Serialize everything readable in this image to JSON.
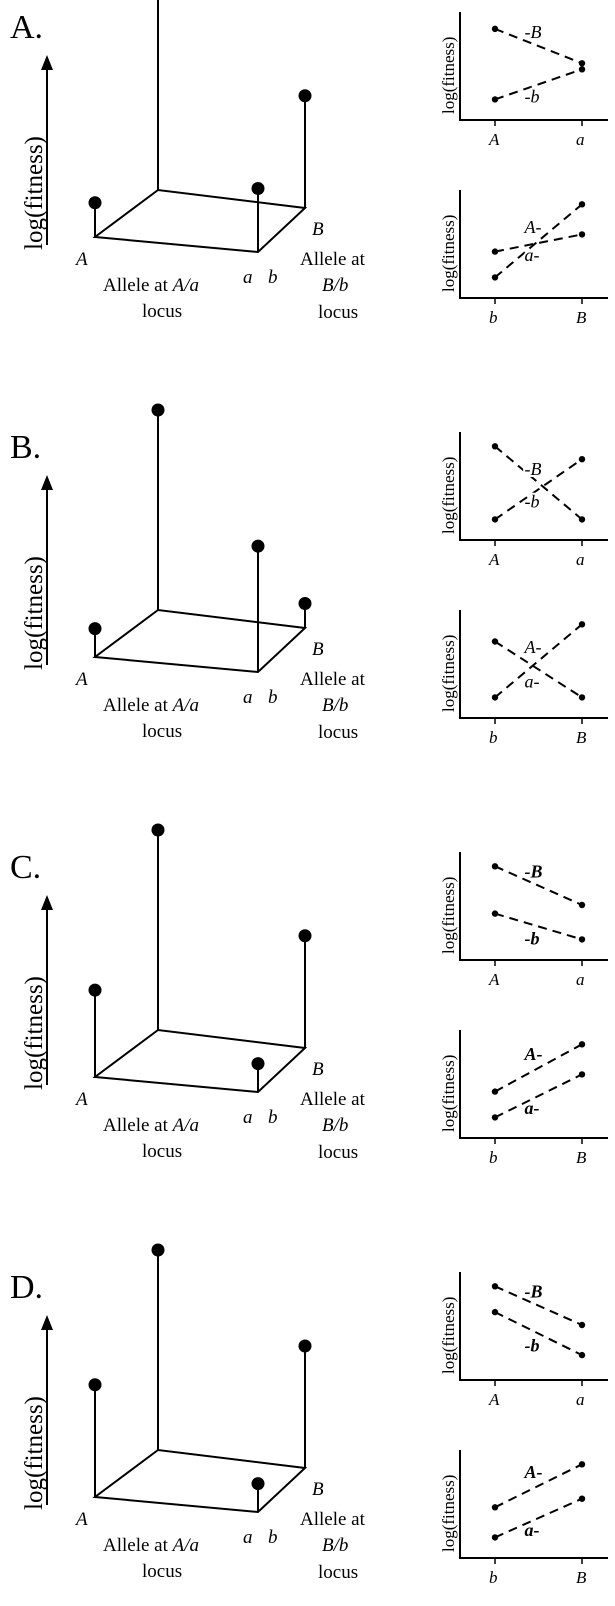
{
  "figure": {
    "panels": [
      {
        "letter": "A.",
        "ylabel": "log(fitness)",
        "x_axis_label": [
          "Allele at ",
          "A/a",
          "locus"
        ],
        "y_axis_label": [
          "Allele at",
          "B/b",
          "locus"
        ],
        "corners": {
          "A": "A",
          "a": "a",
          "b": "b",
          "B": "B"
        },
        "fitness_3d": {
          "Ab": 0.15,
          "AB": 1.0,
          "ab": 0.3,
          "aB": 0.55
        },
        "top_plot": {
          "ylabel": "log(fitness)",
          "xticks": [
            "A",
            "a"
          ],
          "series": [
            {
              "label": "-B",
              "bold": false,
              "values": [
                0.92,
                0.52
              ]
            },
            {
              "label": "-b",
              "bold": false,
              "values": [
                0.1,
                0.45
              ]
            }
          ]
        },
        "bottom_plot": {
          "ylabel": "log(fitness)",
          "xticks": [
            "b",
            "B"
          ],
          "series": [
            {
              "label": "A-",
              "bold": false,
              "values": [
                0.1,
                0.95
              ]
            },
            {
              "label": "a-",
              "bold": false,
              "values": [
                0.4,
                0.6
              ]
            }
          ]
        }
      },
      {
        "letter": "B.",
        "ylabel": "log(fitness)",
        "x_axis_label": [
          "Allele at ",
          "A/a",
          "locus"
        ],
        "y_axis_label": [
          "Allele at",
          "B/b",
          "locus"
        ],
        "corners": {
          "A": "A",
          "a": "a",
          "b": "b",
          "B": "B"
        },
        "fitness_3d": {
          "Ab": 0.12,
          "AB": 1.0,
          "ab": 0.62,
          "aB": 0.1
        },
        "top_plot": {
          "ylabel": "log(fitness)",
          "xticks": [
            "A",
            "a"
          ],
          "series": [
            {
              "label": "-B",
              "bold": false,
              "values": [
                0.95,
                0.1
              ]
            },
            {
              "label": "-b",
              "bold": false,
              "values": [
                0.1,
                0.8
              ]
            }
          ]
        },
        "bottom_plot": {
          "ylabel": "log(fitness)",
          "xticks": [
            "b",
            "B"
          ],
          "series": [
            {
              "label": "A-",
              "bold": false,
              "values": [
                0.1,
                0.95
              ]
            },
            {
              "label": "a-",
              "bold": false,
              "values": [
                0.75,
                0.1
              ]
            }
          ]
        }
      },
      {
        "letter": "C.",
        "ylabel": "log(fitness)",
        "x_axis_label": [
          "Allele at ",
          "A/a",
          "locus"
        ],
        "y_axis_label": [
          "Allele at",
          "B/b",
          "locus"
        ],
        "corners": {
          "A": "A",
          "a": "a",
          "b": "b",
          "B": "B"
        },
        "fitness_3d": {
          "Ab": 0.42,
          "AB": 1.0,
          "ab": 0.12,
          "aB": 0.55
        },
        "top_plot": {
          "ylabel": "log(fitness)",
          "xticks": [
            "A",
            "a"
          ],
          "series": [
            {
              "label": "-B",
              "bold": true,
              "values": [
                0.95,
                0.5
              ]
            },
            {
              "label": "-b",
              "bold": true,
              "values": [
                0.4,
                0.1
              ]
            }
          ]
        },
        "bottom_plot": {
          "ylabel": "log(fitness)",
          "xticks": [
            "b",
            "B"
          ],
          "series": [
            {
              "label": "A-",
              "bold": true,
              "values": [
                0.4,
                0.95
              ]
            },
            {
              "label": "a-",
              "bold": true,
              "values": [
                0.1,
                0.6
              ]
            }
          ]
        }
      },
      {
        "letter": "D.",
        "ylabel": "log(fitness)",
        "x_axis_label": [
          "Allele at ",
          "A/a",
          "locus"
        ],
        "y_axis_label": [
          "Allele at",
          "B/b",
          "locus"
        ],
        "corners": {
          "A": "A",
          "a": "a",
          "b": "b",
          "B": "B"
        },
        "fitness_3d": {
          "Ab": 0.55,
          "AB": 1.0,
          "ab": 0.12,
          "aB": 0.6
        },
        "top_plot": {
          "ylabel": "log(fitness)",
          "xticks": [
            "A",
            "a"
          ],
          "series": [
            {
              "label": "-B",
              "bold": true,
              "values": [
                0.95,
                0.5
              ]
            },
            {
              "label": "-b",
              "bold": true,
              "values": [
                0.65,
                0.15
              ]
            }
          ]
        },
        "bottom_plot": {
          "ylabel": "log(fitness)",
          "xticks": [
            "b",
            "B"
          ],
          "series": [
            {
              "label": "A-",
              "bold": true,
              "values": [
                0.45,
                0.95
              ]
            },
            {
              "label": "a-",
              "bold": true,
              "values": [
                0.1,
                0.55
              ]
            }
          ]
        }
      }
    ]
  }
}
